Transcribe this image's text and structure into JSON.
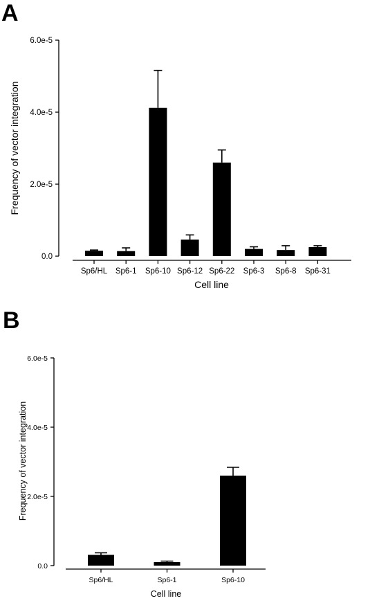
{
  "panels": [
    {
      "letter": "A"
    },
    {
      "letter": "B"
    }
  ],
  "chart_data": [
    {
      "type": "bar",
      "xlabel": "Cell line",
      "ylabel": "Frequency of vector integration",
      "ylim": [
        0,
        6e-05
      ],
      "yticks": [
        0,
        2e-05,
        4e-05,
        6e-05
      ],
      "ytick_labels": [
        "0.0",
        "2.0e-5",
        "4.0e-5",
        "6.0e-5"
      ],
      "categories": [
        "Sp6/HL",
        "Sp6-1",
        "Sp6-10",
        "Sp6-12",
        "Sp6-22",
        "Sp6-3",
        "Sp6-8",
        "Sp6-31"
      ],
      "values": [
        1.5e-06,
        1.4e-06,
        4.12e-05,
        4.6e-06,
        2.6e-05,
        2e-06,
        1.7e-06,
        2.5e-06
      ],
      "error_upper": [
        2e-07,
        9e-07,
        1.04e-05,
        1.3e-06,
        3.5e-06,
        6e-07,
        1.2e-06,
        4e-07
      ],
      "bar_color": "#000000"
    },
    {
      "type": "bar",
      "xlabel": "Cell line",
      "ylabel": "Frequency of vector integration",
      "ylim": [
        0,
        6e-05
      ],
      "yticks": [
        0,
        2e-05,
        4e-05,
        6e-05
      ],
      "ytick_labels": [
        "0.0",
        "2.0e-5",
        "4.0e-5",
        "6.0e-5"
      ],
      "categories": [
        "Sp6/HL",
        "Sp6-1",
        "Sp6-10"
      ],
      "values": [
        3.1e-06,
        1e-06,
        2.6e-05
      ],
      "error_upper": [
        6e-07,
        3e-07,
        2.4e-06
      ],
      "bar_color": "#000000"
    }
  ]
}
